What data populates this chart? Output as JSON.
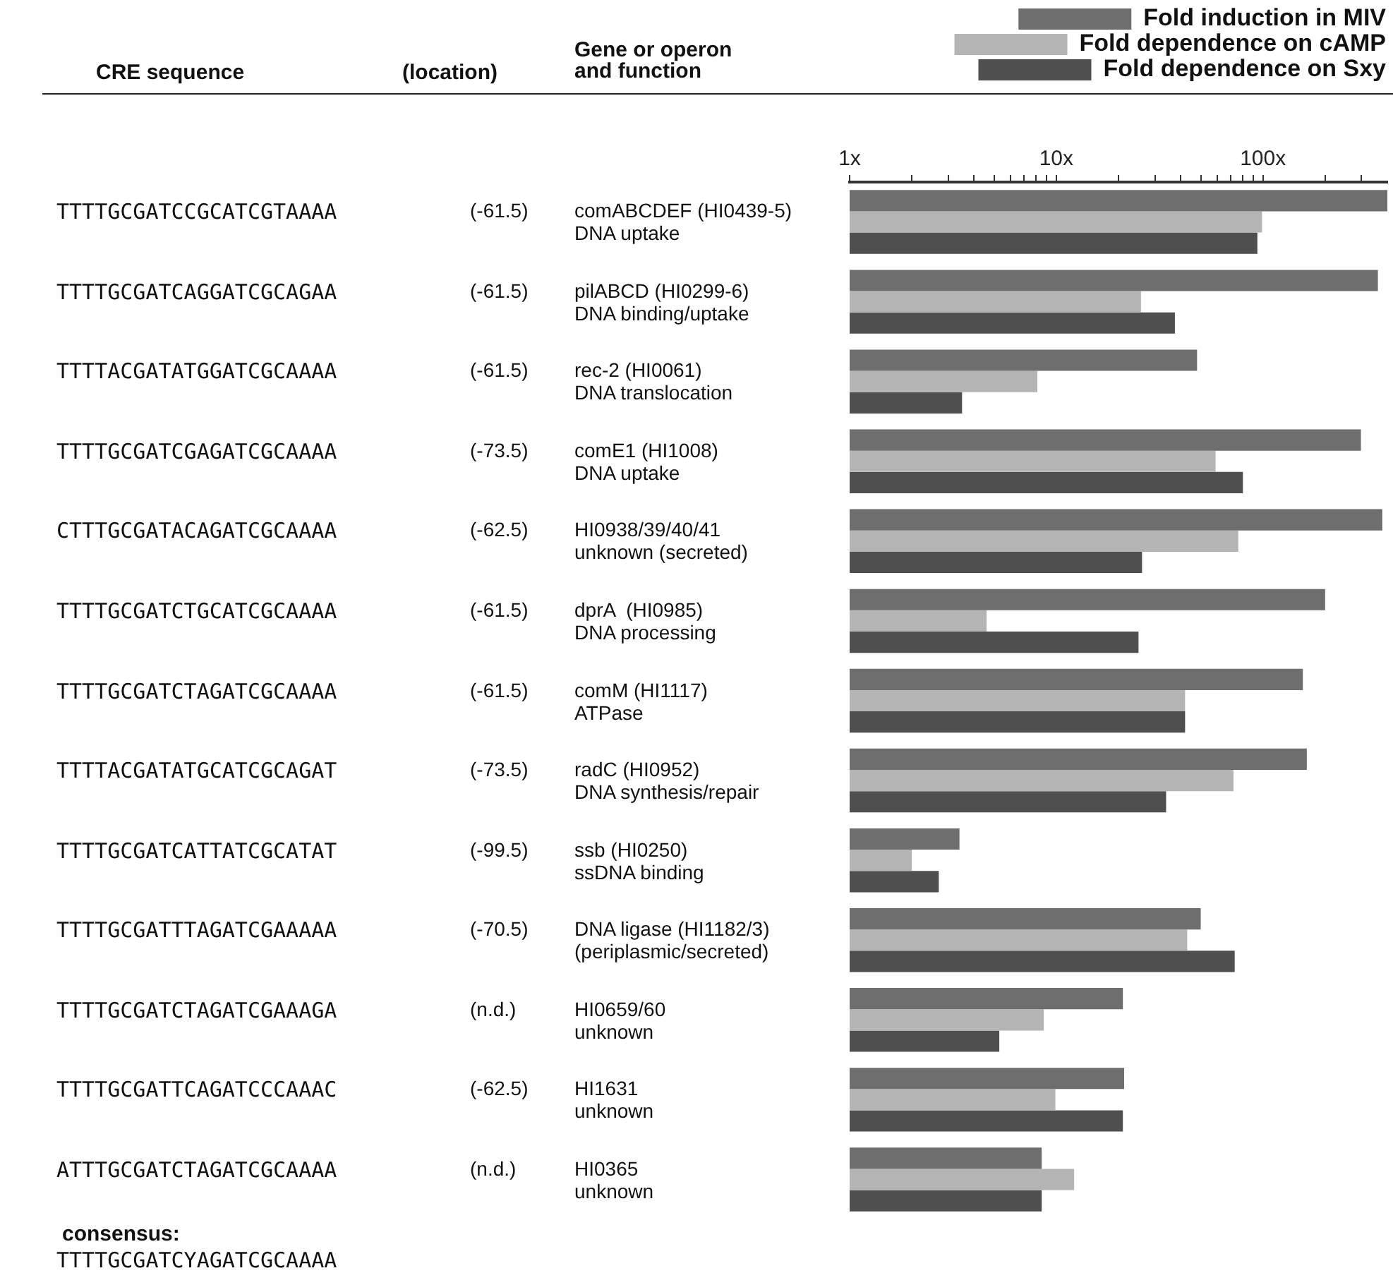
{
  "chart_data": {
    "type": "bar",
    "orientation": "horizontal",
    "log": "x",
    "legend": "top right",
    "tick_labels": "x",
    "grid": false,
    "categories": [
      "comABCDEF (HI0439-5)\nDNA uptake",
      "pilABCD (HI0299-6)\nDNA binding/uptake",
      "rec-2 (HI0061)\nDNA translocation",
      "comE1 (HI1008)\nDNA uptake",
      "HI0938/39/40/41\nunknown (secreted)",
      "dprA  (HI0985)\nDNA processing",
      "comM (HI1117)\nATPase",
      "radC (HI0952)\nDNA synthesis/repair",
      "ssb (HI0250)\nssDNA binding",
      "DNA ligase (HI1182/3)\n(periplasmic/secreted)",
      "HI0659/60\nunknown",
      "HI1631\nunknown",
      "HI0365\nunknown"
    ],
    "series": [
      {
        "name": "Fold induction in MIV",
        "color": "#6e6e6e",
        "values": [
          400,
          360,
          48,
          298,
          378,
          200,
          156,
          163,
          3.4,
          50,
          21,
          21.3,
          8.5
        ]
      },
      {
        "name": "Fold dependence on cAMP",
        "color": "#b4b4b4",
        "values": [
          99,
          25.7,
          8.1,
          59,
          76,
          4.6,
          42,
          72,
          2.0,
          43,
          8.7,
          9.9,
          12.2
        ]
      },
      {
        "name": "Fold dependence on Sxy",
        "color": "#4f4f4f",
        "values": [
          94,
          37.5,
          3.5,
          80,
          26,
          25,
          42,
          34,
          2.7,
          73,
          5.3,
          21,
          8.5
        ]
      }
    ],
    "xlim": [
      1,
      400
    ],
    "xticks": [
      {
        "value": 1,
        "label": "1x"
      },
      {
        "value": 2,
        "label": null
      },
      {
        "value": 3,
        "label": null
      },
      {
        "value": 4,
        "label": null
      },
      {
        "value": 5,
        "label": null
      },
      {
        "value": 6,
        "label": null
      },
      {
        "value": 7,
        "label": null
      },
      {
        "value": 8,
        "label": null
      },
      {
        "value": 9,
        "label": null
      },
      {
        "value": 10,
        "label": "10x"
      },
      {
        "value": 20,
        "label": null
      },
      {
        "value": 30,
        "label": null
      },
      {
        "value": 40,
        "label": null
      },
      {
        "value": 50,
        "label": null
      },
      {
        "value": 60,
        "label": null
      },
      {
        "value": 70,
        "label": null
      },
      {
        "value": 80,
        "label": null
      },
      {
        "value": 90,
        "label": null
      },
      {
        "value": 100,
        "label": "100x"
      },
      {
        "value": 200,
        "label": null
      },
      {
        "value": 300,
        "label": null
      }
    ],
    "annotations": [
      "CRE sequence",
      "(location)",
      "Gene or operon\nand function",
      "consensus:",
      "TTTTGCGATCYAGATCGCAAAA",
      "TTTTGCGATCCGCATCGTAAAA",
      "(-61.5)",
      "TTTTGCGATCAGGATCGCAGAA",
      "(-61.5)",
      "TTTTACGATATGGATCGCAAAA",
      "(-61.5)",
      "TTTTGCGATCGAGATCGCAAAA",
      "(-73.5)",
      "CTTTGCGATACAGATCGCAAAA",
      "(-62.5)",
      "TTTTGCGATCTGCATCGCAAAA",
      "(-61.5)",
      "TTTTGCGATCTAGATCGCAAAA",
      "(-61.5)",
      "TTTTACGATATGCATCGCAGAT",
      "(-73.5)",
      "TTTTGCGATCATTATCGCATAT",
      "(-99.5)",
      "TTTTGCGATTTAGATCGAAAAA",
      "(-70.5)",
      "TTTTGCGATCTAGATCGAAAGA",
      "(n.d.)",
      "TTTTGCGATTCAGATCCCAAAC",
      "(-62.5)",
      "ATTTGCGATCTAGATCGCAAAA",
      "(n.d.)"
    ]
  }
}
